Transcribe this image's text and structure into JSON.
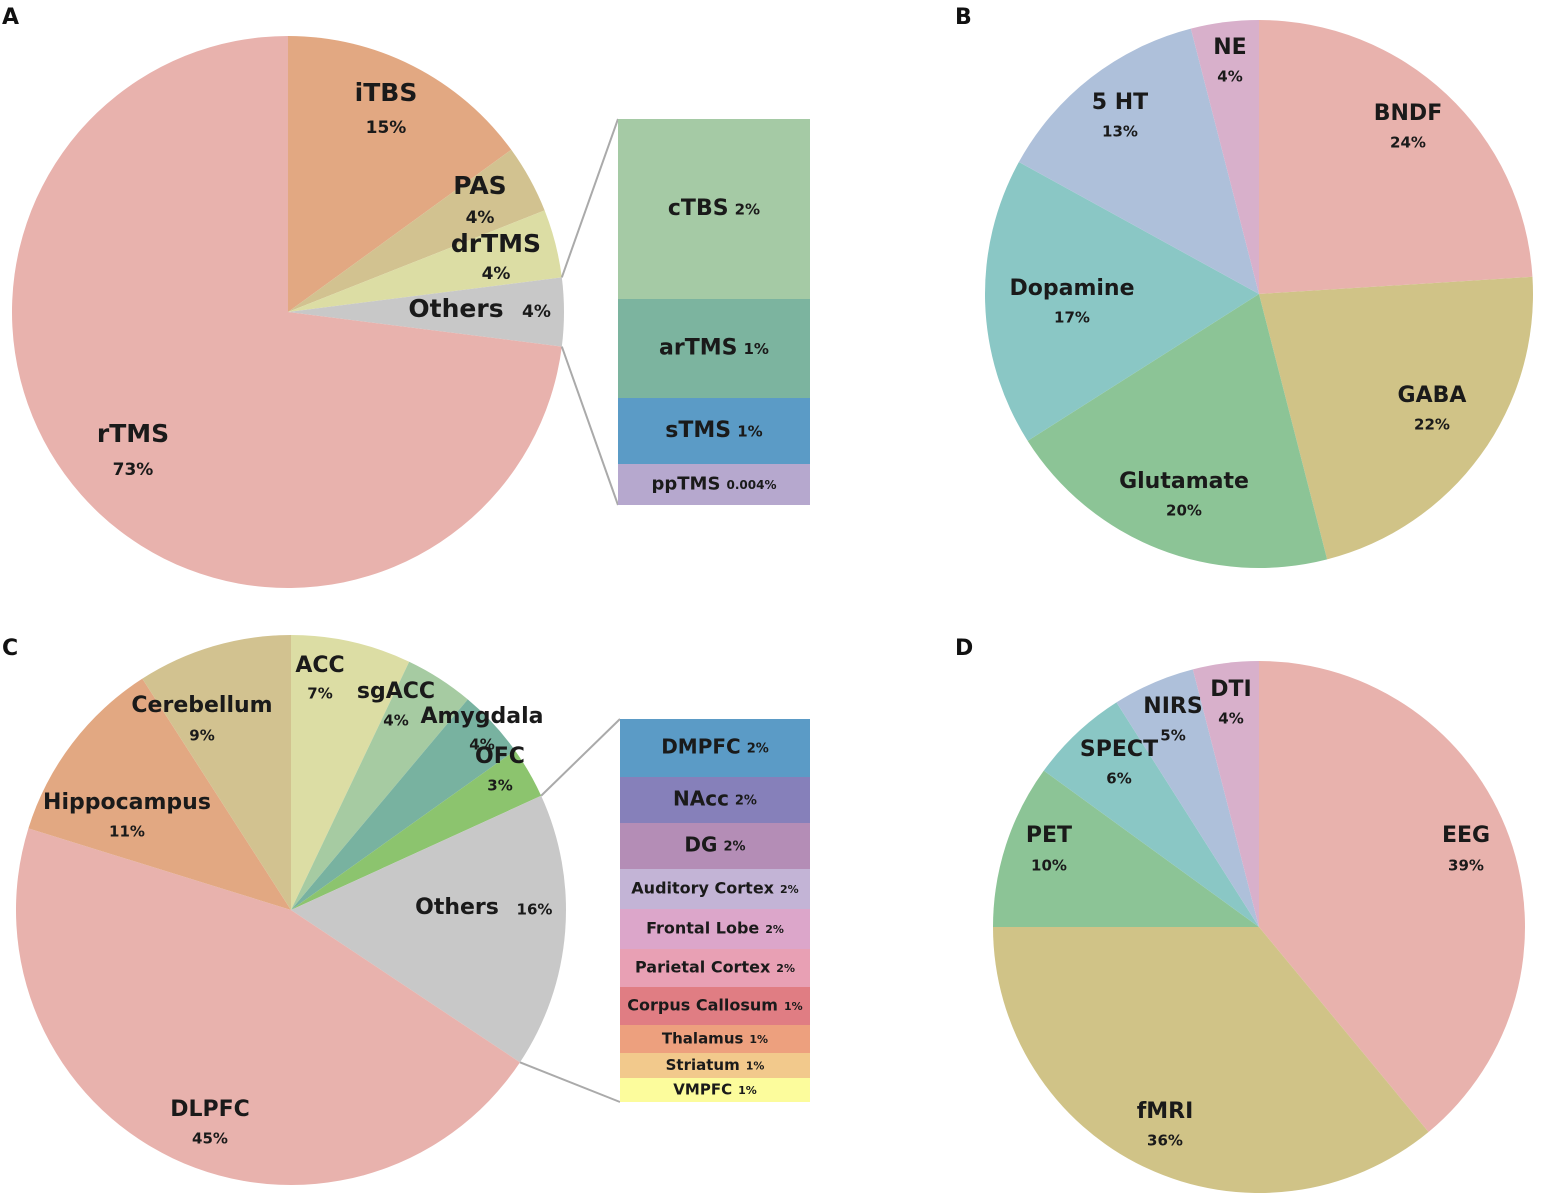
{
  "chart_data": [
    {
      "panel": "A",
      "type": "pie",
      "slices": [
        {
          "label": "iTBS",
          "value": 15,
          "value_label": "15%",
          "color": "#E2A882"
        },
        {
          "label": "PAS",
          "value": 4,
          "value_label": "4%",
          "color": "#D2C290"
        },
        {
          "label": "drTMS",
          "value": 4,
          "value_label": "4%",
          "color": "#DCDDA4"
        },
        {
          "label": "Others",
          "value": 4,
          "value_label": "4%",
          "color": "#C8C8C8"
        },
        {
          "label": "rTMS",
          "value": 73,
          "value_label": "73%",
          "color": "#E8B2AD"
        }
      ],
      "breakdown_of": "Others",
      "breakdown": [
        {
          "label": "cTBS",
          "value": 2,
          "value_label": "2%",
          "color": "#A5CAA5"
        },
        {
          "label": "arTMS",
          "value": 1,
          "value_label": "1%",
          "color": "#7CB49F"
        },
        {
          "label": "sTMS",
          "value": 1,
          "value_label": "1%",
          "color": "#5B9BC6"
        },
        {
          "label": "ppTMS",
          "value": 0.004,
          "value_label": "0.004%",
          "color": "#B6A8CE"
        }
      ]
    },
    {
      "panel": "B",
      "type": "pie",
      "slices": [
        {
          "label": "BNDF",
          "value": 24,
          "value_label": "24%",
          "color": "#E8B2AD"
        },
        {
          "label": "GABA",
          "value": 22,
          "value_label": "22%",
          "color": "#D0C387"
        },
        {
          "label": "Glutamate",
          "value": 20,
          "value_label": "20%",
          "color": "#8CC496"
        },
        {
          "label": "Dopamine",
          "value": 17,
          "value_label": "17%",
          "color": "#8AC7C5"
        },
        {
          "label": "5 HT",
          "value": 13,
          "value_label": "13%",
          "color": "#AEC0DA"
        },
        {
          "label": "NE",
          "value": 4,
          "value_label": "4%",
          "color": "#D8B0CB"
        }
      ]
    },
    {
      "panel": "C",
      "type": "pie",
      "slices": [
        {
          "label": "ACC",
          "value": 7,
          "value_label": "7%",
          "color": "#DCDDA4"
        },
        {
          "label": "sgACC",
          "value": 4,
          "value_label": "4%",
          "color": "#A6CBA2"
        },
        {
          "label": "Amygdala",
          "value": 4,
          "value_label": "4%",
          "color": "#78B2A0"
        },
        {
          "label": "OFC",
          "value": 3,
          "value_label": "3%",
          "color": "#8CC46E"
        },
        {
          "label": "Others",
          "value": 16,
          "value_label": "16%",
          "color": "#C8C8C8"
        },
        {
          "label": "DLPFC",
          "value": 45,
          "value_label": "45%",
          "color": "#E8B2AD"
        },
        {
          "label": "Hippocampus",
          "value": 11,
          "value_label": "11%",
          "color": "#E2A882"
        },
        {
          "label": "Cerebellum",
          "value": 9,
          "value_label": "9%",
          "color": "#D2C290"
        }
      ],
      "breakdown_of": "Others",
      "breakdown": [
        {
          "label": "DMPFC",
          "value": 2,
          "value_label": "2%",
          "color": "#5B9BC6"
        },
        {
          "label": "NAcc",
          "value": 2,
          "value_label": "2%",
          "color": "#8680BA"
        },
        {
          "label": "DG",
          "value": 2,
          "value_label": "2%",
          "color": "#B48DB6"
        },
        {
          "label": "Auditory Cortex",
          "value": 2,
          "value_label": "2%",
          "color": "#C3B4D6"
        },
        {
          "label": "Frontal Lobe",
          "value": 2,
          "value_label": "2%",
          "color": "#DCA6CA"
        },
        {
          "label": "Parietal Cortex",
          "value": 2,
          "value_label": "2%",
          "color": "#E8A0B4"
        },
        {
          "label": "Corpus Callosum",
          "value": 1,
          "value_label": "1%",
          "color": "#E07D83"
        },
        {
          "label": "Thalamus",
          "value": 1,
          "value_label": "1%",
          "color": "#EDA07E"
        },
        {
          "label": "Striatum",
          "value": 1,
          "value_label": "1%",
          "color": "#F2C98C"
        },
        {
          "label": "VMPFC",
          "value": 1,
          "value_label": "1%",
          "color": "#FCFC9C"
        }
      ]
    },
    {
      "panel": "D",
      "type": "pie",
      "slices": [
        {
          "label": "EEG",
          "value": 39,
          "value_label": "39%",
          "color": "#E8B2AD"
        },
        {
          "label": "fMRI",
          "value": 36,
          "value_label": "36%",
          "color": "#D0C387"
        },
        {
          "label": "PET",
          "value": 10,
          "value_label": "10%",
          "color": "#8CC496"
        },
        {
          "label": "SPECT",
          "value": 6,
          "value_label": "6%",
          "color": "#8AC7C5"
        },
        {
          "label": "NIRS",
          "value": 5,
          "value_label": "5%",
          "color": "#AEC0DA"
        },
        {
          "label": "DTI",
          "value": 4,
          "value_label": "4%",
          "color": "#D8B0CB"
        }
      ]
    }
  ]
}
